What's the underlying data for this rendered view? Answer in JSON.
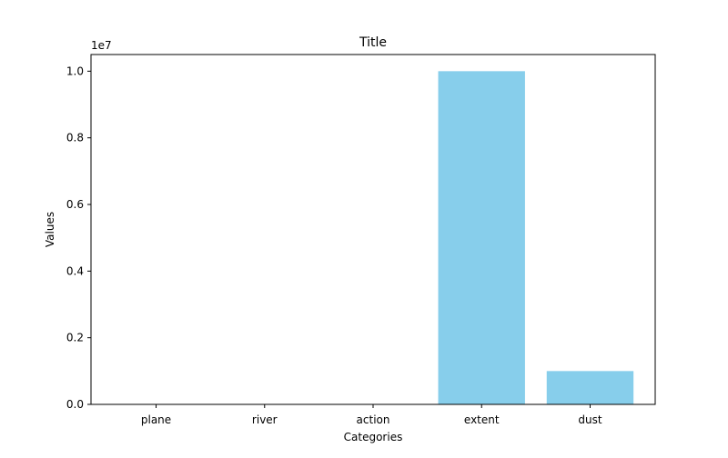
{
  "chart_data": {
    "type": "bar",
    "title": "Title",
    "xlabel": "Categories",
    "ylabel": "Values",
    "categories": [
      "plane",
      "river",
      "action",
      "extent",
      "dust"
    ],
    "values": [
      0,
      0,
      0,
      10000000,
      1000000
    ],
    "ylim": [
      0,
      10500000
    ],
    "yticks": [
      0,
      2000000,
      4000000,
      6000000,
      8000000,
      10000000
    ],
    "ytick_labels": [
      "0.0",
      "0.2",
      "0.4",
      "0.6",
      "0.8",
      "1.0"
    ],
    "offset_label": "1e7",
    "bar_color": "#87CEEB",
    "grid": false,
    "legend": "none"
  }
}
